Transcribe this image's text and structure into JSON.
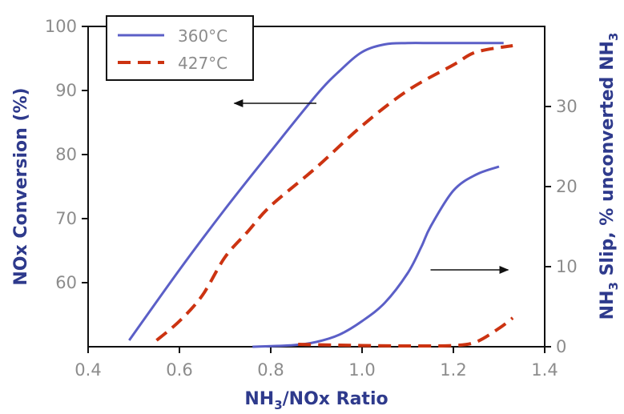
{
  "chart_data": {
    "type": "line",
    "xlabel": {
      "prefix": "NH",
      "sub": "3",
      "suffix": "/NOx Ratio"
    },
    "ylabel_left": "NOx Conversion (%)",
    "ylabel_right": {
      "prefix": "NH",
      "sub": "3",
      "middle": " Slip, % unconverted NH",
      "sub2": "3"
    },
    "xlim": [
      0.4,
      1.4
    ],
    "ylim_left": [
      50,
      100
    ],
    "ylim_right": [
      0,
      40
    ],
    "x_ticks": [
      "0.4",
      "0.6",
      "0.8",
      "1.0",
      "1.2",
      "1.4"
    ],
    "y_left_ticks": [
      "60",
      "70",
      "80",
      "90",
      "100"
    ],
    "y_right_ticks": [
      "0",
      "10",
      "20",
      "30"
    ],
    "legend": {
      "position": "top-left",
      "entries": [
        {
          "label": "360°C",
          "color": "#5b5fc7",
          "style": "solid"
        },
        {
          "label": "427°C",
          "color": "#cc3311",
          "style": "dashed"
        }
      ]
    },
    "arrows": [
      {
        "direction": "left",
        "axis": "left",
        "from": [
          0.9,
          88
        ],
        "to": [
          0.72,
          88
        ]
      },
      {
        "direction": "right",
        "axis": "left",
        "from": [
          1.15,
          62
        ],
        "to": [
          1.32,
          62
        ]
      }
    ],
    "series": [
      {
        "name": "360°C",
        "axis": "left",
        "color": "#5b5fc7",
        "style": "solid",
        "x": [
          0.49,
          0.6,
          0.7,
          0.8,
          0.9,
          0.95,
          1.0,
          1.05,
          1.1,
          1.15,
          1.2,
          1.31
        ],
        "y": [
          51,
          62,
          71.5,
          80.5,
          89.3,
          93,
          96,
          97.2,
          97.4,
          97.4,
          97.4,
          97.4
        ]
      },
      {
        "name": "427°C",
        "axis": "left",
        "color": "#cc3311",
        "style": "dashed",
        "x": [
          0.55,
          0.6,
          0.65,
          0.7,
          0.75,
          0.8,
          0.9,
          1.0,
          1.1,
          1.2,
          1.25,
          1.33
        ],
        "y": [
          51,
          54,
          58,
          64,
          68,
          72,
          78,
          84.5,
          90,
          94,
          96,
          97
        ]
      },
      {
        "name": "360°C",
        "axis": "right",
        "color": "#5b5fc7",
        "style": "solid",
        "x": [
          0.76,
          0.85,
          0.9,
          0.95,
          1.0,
          1.05,
          1.1,
          1.13,
          1.15,
          1.2,
          1.25,
          1.3
        ],
        "y": [
          0,
          0.2,
          0.6,
          1.5,
          3.2,
          5.5,
          9.2,
          12.5,
          15,
          19.5,
          21.5,
          22.5
        ]
      },
      {
        "name": "427°C",
        "axis": "right",
        "color": "#cc3311",
        "style": "dashed",
        "x": [
          0.86,
          0.95,
          1.0,
          1.1,
          1.2,
          1.25,
          1.3,
          1.33
        ],
        "y": [
          0.3,
          0.2,
          0.15,
          0.1,
          0.15,
          0.6,
          2.3,
          3.6
        ]
      }
    ]
  }
}
